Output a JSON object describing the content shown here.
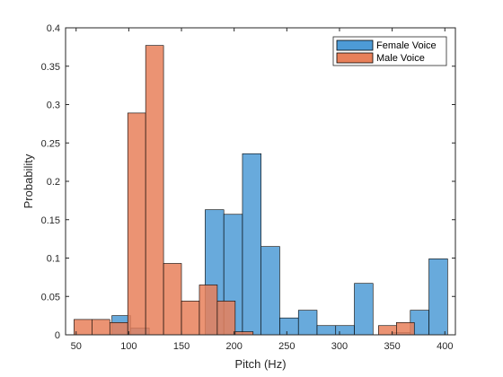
{
  "chart_data": {
    "type": "bar",
    "subtype": "overlaid-histogram",
    "xlabel": "Pitch (Hz)",
    "ylabel": "Probability",
    "xlim": [
      40,
      410
    ],
    "ylim": [
      0,
      0.4
    ],
    "xticks": [
      50,
      100,
      150,
      200,
      250,
      300,
      350,
      400
    ],
    "yticks": [
      0,
      0.05,
      0.1,
      0.15,
      0.2,
      0.25,
      0.3,
      0.35,
      0.4
    ],
    "xtick_labels": [
      "50",
      "100",
      "150",
      "200",
      "250",
      "300",
      "350",
      "400"
    ],
    "ytick_labels": [
      "0",
      "0.05",
      "0.1",
      "0.15",
      "0.2",
      "0.25",
      "0.3",
      "0.35",
      "0.4"
    ],
    "grid": false,
    "legend_position": "top-right",
    "series": [
      {
        "name": "Female Voice",
        "color": "#4d9bd6",
        "bin_width": 17.7,
        "bins": [
          [
            84,
            0.025
          ],
          [
            101.7,
            0.009
          ],
          [
            119.4,
            0.0
          ],
          [
            137.1,
            0.0
          ],
          [
            154.8,
            0.0
          ],
          [
            172.5,
            0.163
          ],
          [
            190.2,
            0.157
          ],
          [
            207.9,
            0.236
          ],
          [
            225.6,
            0.115
          ],
          [
            243.3,
            0.022
          ],
          [
            261,
            0.032
          ],
          [
            278.7,
            0.012
          ],
          [
            296.4,
            0.012
          ],
          [
            314.1,
            0.067
          ],
          [
            331.8,
            0.0
          ],
          [
            349.5,
            0.003
          ],
          [
            367.2,
            0.032
          ],
          [
            384.9,
            0.099
          ]
        ]
      },
      {
        "name": "Male Voice",
        "color": "#e8805a",
        "bin_width": 17.0,
        "bins": [
          [
            48,
            0.02
          ],
          [
            65,
            0.02
          ],
          [
            82,
            0.016
          ],
          [
            99,
            0.289
          ],
          [
            116,
            0.377
          ],
          [
            133,
            0.093
          ],
          [
            150,
            0.044
          ],
          [
            167,
            0.065
          ],
          [
            184,
            0.044
          ],
          [
            201,
            0.004
          ],
          [
            218,
            0.0
          ],
          [
            235,
            0.0
          ],
          [
            252,
            0.0
          ],
          [
            269,
            0.0
          ],
          [
            286,
            0.0
          ],
          [
            303,
            0.0
          ],
          [
            320,
            0.0
          ],
          [
            337,
            0.012
          ],
          [
            354,
            0.016
          ]
        ]
      }
    ]
  }
}
